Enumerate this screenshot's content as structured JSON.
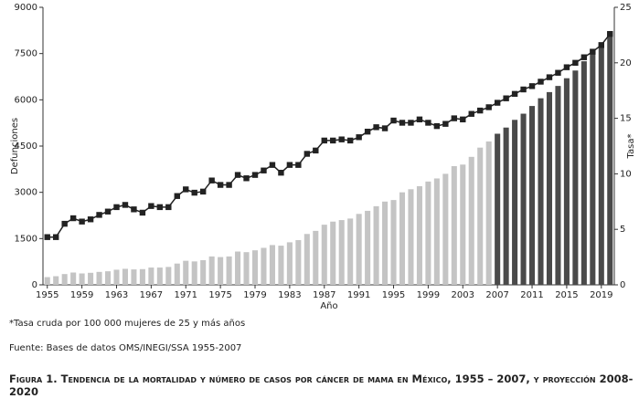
{
  "chart_data": {
    "type": "bar",
    "y_label": "Defunciones",
    "y2_label": "Tasa*",
    "x_label": "Año",
    "footnote": "*Tasa cruda por 100 000 mujeres de 25 y más años",
    "source": "Fuente: Bases de datos OMS/INEGI/SSA 1955-2007",
    "caption": "Figura 1. Tendencia de la mortalidad y número de casos por cáncer de mama en México, 1955 – 2007, y proyección 2008-2020",
    "categories": [
      "1955",
      null,
      null,
      null,
      "1959",
      null,
      null,
      null,
      "1963",
      null,
      null,
      null,
      "1967",
      null,
      null,
      null,
      "1971",
      null,
      null,
      null,
      "1975",
      null,
      null,
      null,
      "1979",
      null,
      null,
      null,
      "1983",
      null,
      null,
      null,
      "1987",
      null,
      null,
      null,
      "1991",
      null,
      null,
      null,
      "1995",
      null,
      null,
      null,
      "1999",
      null,
      null,
      null,
      "2003",
      null,
      null,
      null,
      "2007",
      null,
      null,
      null,
      "2011",
      null,
      null,
      null,
      "2015",
      null,
      null,
      null,
      "2019",
      null
    ],
    "ylim": [
      0,
      9000
    ],
    "yticks": [
      0,
      1500,
      3000,
      4500,
      6000,
      7500,
      9000
    ],
    "y2lim": [
      0,
      25
    ],
    "y2ticks": [
      0,
      5,
      10,
      15,
      20,
      25
    ],
    "series": [
      {
        "type": "bar",
        "color": "#c4c4c4",
        "values": [
          250,
          280,
          350,
          400,
          370,
          390,
          420,
          440,
          490,
          520,
          500,
          510,
          560,
          560,
          580,
          690,
          780,
          760,
          800,
          920,
          900,
          920,
          1080,
          1060,
          1120,
          1200,
          1290,
          1270,
          1380,
          1450,
          1650,
          1750,
          1950,
          2050,
          2100,
          2150,
          2300,
          2400,
          2550,
          2700,
          2750,
          3000,
          3100,
          3200,
          3350,
          3450,
          3600,
          3850,
          3900,
          4150,
          4450,
          4650,
          null,
          null,
          null,
          null,
          null,
          null,
          null,
          null,
          null,
          null,
          null,
          null,
          null,
          null
        ]
      },
      {
        "type": "bar",
        "color": "#4a4a4a",
        "values": [
          null,
          null,
          null,
          null,
          null,
          null,
          null,
          null,
          null,
          null,
          null,
          null,
          null,
          null,
          null,
          null,
          null,
          null,
          null,
          null,
          null,
          null,
          null,
          null,
          null,
          null,
          null,
          null,
          null,
          null,
          null,
          null,
          null,
          null,
          null,
          null,
          null,
          null,
          null,
          null,
          null,
          null,
          null,
          null,
          null,
          null,
          null,
          null,
          null,
          null,
          null,
          null,
          4900,
          5100,
          5350,
          5550,
          5800,
          6050,
          6250,
          6450,
          6700,
          6950,
          7250,
          7500,
          7800,
          8200
        ]
      },
      {
        "type": "line",
        "axis": "y2",
        "color": "#222222",
        "values": [
          4.3,
          4.3,
          5.5,
          6.0,
          5.7,
          5.9,
          6.3,
          6.6,
          7.0,
          7.2,
          6.8,
          6.5,
          7.1,
          7.0,
          7.0,
          8.0,
          8.6,
          8.3,
          8.4,
          9.4,
          9.0,
          9.0,
          9.9,
          9.6,
          9.9,
          10.3,
          10.8,
          10.1,
          10.8,
          10.8,
          11.8,
          12.1,
          13.0,
          13.0,
          13.1,
          13.0,
          13.3,
          13.8,
          14.2,
          14.1,
          14.8,
          14.6,
          14.6,
          14.9,
          14.6,
          14.3,
          14.5,
          15.0,
          14.9,
          15.4,
          15.7,
          16.0,
          16.4,
          16.8,
          17.2,
          17.6,
          17.9,
          18.3,
          18.7,
          19.1,
          19.6,
          20.0,
          20.5,
          21.0,
          21.6,
          22.6
        ]
      }
    ]
  }
}
